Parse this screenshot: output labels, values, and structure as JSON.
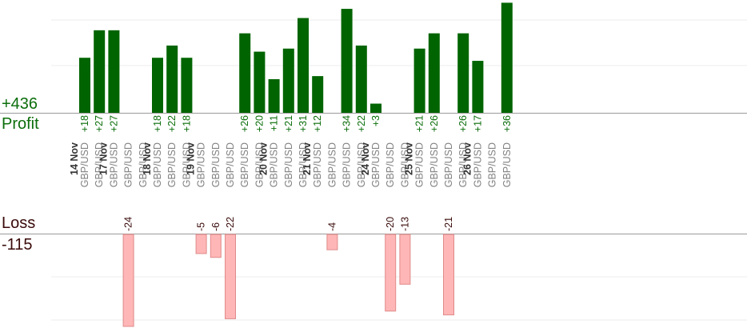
{
  "summary": {
    "profit_total": "+436",
    "profit_label": "Profit",
    "loss_label": "Loss",
    "loss_total": "-115"
  },
  "colors": {
    "profit_bar": "#006400",
    "loss_bar": "#ffb6b6",
    "loss_bar_stroke": "#e08a8a",
    "profit_text": "#0b6e0b",
    "loss_text": "#3a0a0a",
    "day_text": "#333333",
    "pair_text": "#808080"
  },
  "chart_data": {
    "type": "bar",
    "title": "",
    "xlabel": "",
    "ylabel": "",
    "profit_axis_max": 28,
    "loss_axis_max": 24,
    "clipped": "bars exceeding the panel are cut off at the top",
    "days": [
      {
        "date": "14 Nov",
        "trades": [
          {
            "pair": "GBP/USD",
            "value": 18
          },
          {
            "pair": "GBP/USD",
            "value": 27
          }
        ]
      },
      {
        "date": "17 Nov",
        "trades": [
          {
            "pair": "GBP/USD",
            "value": 27
          },
          {
            "pair": "GBP/USD",
            "value": -24
          },
          {
            "pair": "GBP/USD",
            "value": null
          }
        ]
      },
      {
        "date": "18 Nov",
        "trades": [
          {
            "pair": "GBP/USD",
            "value": 18
          },
          {
            "pair": "GBP/USD",
            "value": 22
          },
          {
            "pair": "GBP/USD",
            "value": 18
          }
        ]
      },
      {
        "date": "19 Nov",
        "trades": [
          {
            "pair": "GBP/USD",
            "value": -5
          },
          {
            "pair": "GBP/USD",
            "value": -6
          },
          {
            "pair": "GBP/USD",
            "value": -22
          },
          {
            "pair": "GBP/USD",
            "value": 26
          },
          {
            "pair": "GBP/USD",
            "value": 20
          }
        ]
      },
      {
        "date": "20 Nov",
        "trades": [
          {
            "pair": "GBP/USD",
            "value": 11
          },
          {
            "pair": "GBP/USD",
            "value": 21
          },
          {
            "pair": "GBP/USD",
            "value": 31
          }
        ]
      },
      {
        "date": "21 Nov",
        "trades": [
          {
            "pair": "GBP/USD",
            "value": 12
          },
          {
            "pair": "GBP/USD",
            "value": -4
          },
          {
            "pair": "GBP/USD",
            "value": 34
          },
          {
            "pair": "GBP/USD",
            "value": 22
          }
        ]
      },
      {
        "date": "24 Nov",
        "trades": [
          {
            "pair": "GBP/USD",
            "value": 3
          },
          {
            "pair": "GBP/USD",
            "value": -20
          },
          {
            "pair": "GBP/USD",
            "value": -13
          }
        ]
      },
      {
        "date": "25 Nov",
        "trades": [
          {
            "pair": "GBP/USD",
            "value": 21
          },
          {
            "pair": "GBP/USD",
            "value": 26
          },
          {
            "pair": "GBP/USD",
            "value": -21
          },
          {
            "pair": "GBP/USD",
            "value": 26
          }
        ]
      },
      {
        "date": "26 Nov",
        "trades": [
          {
            "pair": "GBP/USD",
            "value": 17
          },
          {
            "pair": "GBP/USD",
            "value": null
          },
          {
            "pair": "GBP/USD",
            "value": 36
          }
        ]
      }
    ]
  }
}
